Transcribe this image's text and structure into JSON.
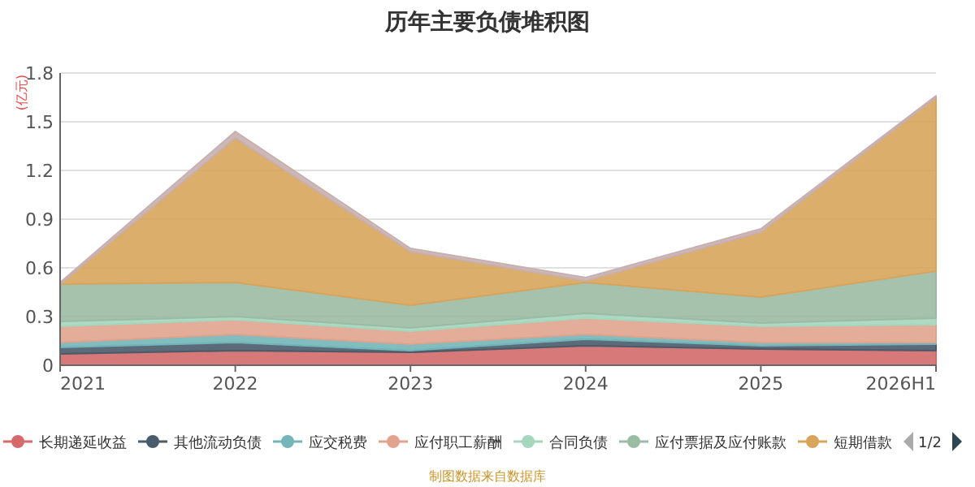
{
  "chart_data": {
    "type": "area",
    "title": "历年主要负债堆积图",
    "ylabel": "(亿元)",
    "categories": [
      "2021",
      "2022",
      "2023",
      "2024",
      "2025",
      "2026H1"
    ],
    "stacked": true,
    "ylim": [
      0,
      1.8
    ],
    "yticks": [
      0,
      0.3,
      0.6,
      0.9,
      1.2,
      1.5,
      1.8
    ],
    "grid": "y",
    "legend": "bottom",
    "series": [
      {
        "name": "长期递延收益",
        "color": "#d46a6a",
        "values": [
          0.07,
          0.09,
          0.08,
          0.12,
          0.1,
          0.09
        ]
      },
      {
        "name": "其他流动负债",
        "color": "#4a5b6a",
        "values": [
          0.04,
          0.05,
          0.01,
          0.04,
          0.02,
          0.04
        ]
      },
      {
        "name": "应交税费",
        "color": "#73b5b8",
        "values": [
          0.03,
          0.05,
          0.04,
          0.03,
          0.02,
          0.01
        ]
      },
      {
        "name": "应付职工薪酬",
        "color": "#e0a48e",
        "values": [
          0.1,
          0.09,
          0.08,
          0.1,
          0.1,
          0.11
        ]
      },
      {
        "name": "合同负债",
        "color": "#a5d6be",
        "values": [
          0.03,
          0.02,
          0.02,
          0.03,
          0.02,
          0.04
        ]
      },
      {
        "name": "应付票据及应付账款",
        "color": "#9cbba4",
        "values": [
          0.23,
          0.21,
          0.14,
          0.19,
          0.16,
          0.29
        ]
      },
      {
        "name": "短期借款",
        "color": "#d8a55c",
        "values": [
          0.0,
          0.89,
          0.33,
          0.01,
          0.4,
          1.07
        ]
      },
      {
        "color": "#c8b0b0",
        "values": [
          0.01,
          0.04,
          0.02,
          0.02,
          0.02,
          0.01
        ]
      }
    ],
    "annotations": [
      "1/2",
      "制图数据来自数据库"
    ]
  }
}
